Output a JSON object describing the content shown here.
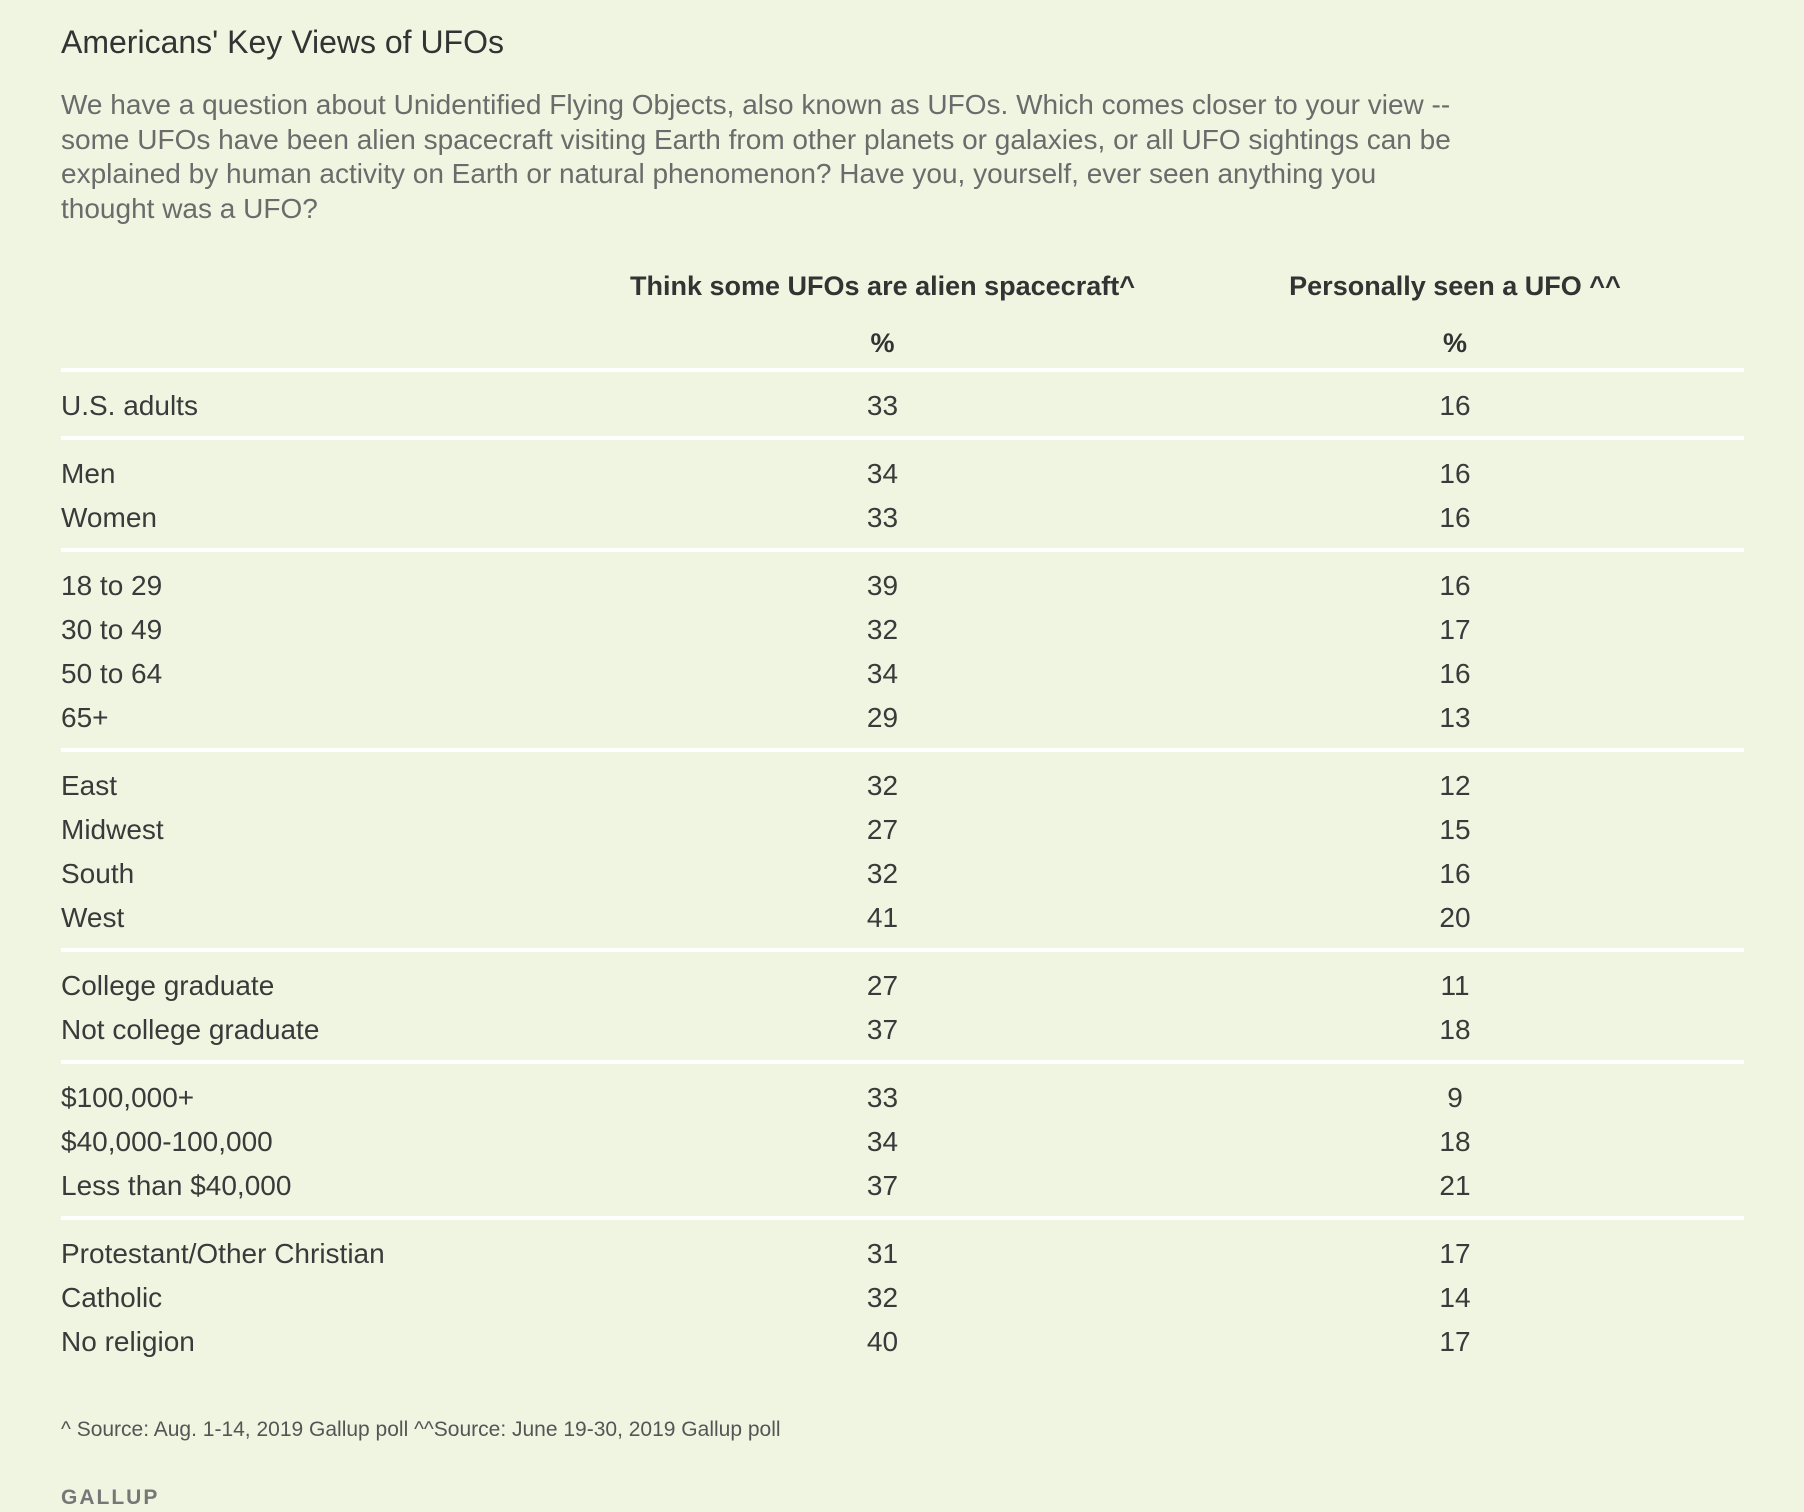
{
  "title": "Americans' Key Views of UFOs",
  "subtitle": "We have a question about Unidentified Flying Objects, also known as UFOs. Which comes closer to your view -- some UFOs have been alien spacecraft visiting Earth from other planets or galaxies, or all UFO sightings can be explained by human activity on Earth or natural phenomenon? Have you, yourself, ever seen anything you thought was a UFO?",
  "footnote": "^ Source: Aug. 1-14, 2019 Gallup poll ^^Source: June 19-30, 2019 Gallup poll",
  "brand": "GALLUP",
  "colors": {
    "background": "#f0f5e2",
    "divider": "#ffffff",
    "text": "#3c3c3c"
  },
  "chart_data": {
    "type": "table",
    "columns": [
      {
        "name": "Think some UFOs are alien spacecraft^",
        "unit": "%"
      },
      {
        "name": "Personally seen a UFO ^^",
        "unit": "%"
      }
    ],
    "groups": [
      {
        "rows": [
          {
            "label": "U.S. adults",
            "values": [
              33,
              16
            ]
          }
        ]
      },
      {
        "rows": [
          {
            "label": "Men",
            "values": [
              34,
              16
            ]
          },
          {
            "label": "Women",
            "values": [
              33,
              16
            ]
          }
        ]
      },
      {
        "rows": [
          {
            "label": "18 to 29",
            "values": [
              39,
              16
            ]
          },
          {
            "label": "30 to 49",
            "values": [
              32,
              17
            ]
          },
          {
            "label": "50 to 64",
            "values": [
              34,
              16
            ]
          },
          {
            "label": "65+",
            "values": [
              29,
              13
            ]
          }
        ]
      },
      {
        "rows": [
          {
            "label": "East",
            "values": [
              32,
              12
            ]
          },
          {
            "label": "Midwest",
            "values": [
              27,
              15
            ]
          },
          {
            "label": "South",
            "values": [
              32,
              16
            ]
          },
          {
            "label": "West",
            "values": [
              41,
              20
            ]
          }
        ]
      },
      {
        "rows": [
          {
            "label": "College graduate",
            "values": [
              27,
              11
            ]
          },
          {
            "label": "Not college graduate",
            "values": [
              37,
              18
            ]
          }
        ]
      },
      {
        "rows": [
          {
            "label": "$100,000+",
            "values": [
              33,
              9
            ]
          },
          {
            "label": "$40,000-100,000",
            "values": [
              34,
              18
            ]
          },
          {
            "label": "Less than $40,000",
            "values": [
              37,
              21
            ]
          }
        ]
      },
      {
        "rows": [
          {
            "label": "Protestant/Other Christian",
            "values": [
              31,
              17
            ]
          },
          {
            "label": "Catholic",
            "values": [
              32,
              14
            ]
          },
          {
            "label": "No religion",
            "values": [
              40,
              17
            ]
          }
        ]
      }
    ]
  }
}
